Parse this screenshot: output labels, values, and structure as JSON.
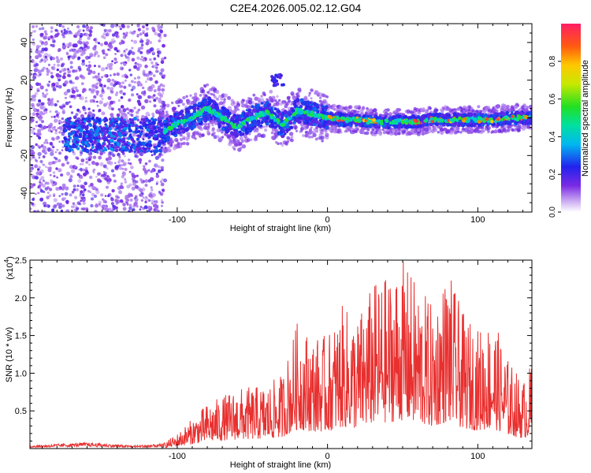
{
  "title": "C2E4.2026.005.02.12.G04",
  "chart_data": [
    {
      "type": "heatmap",
      "title": "C2E4.2026.005.02.12.G04",
      "xlabel": "Height of straight line (km)",
      "ylabel": "Frequency (Hz)",
      "xlim": [
        -198,
        136
      ],
      "ylim": [
        -50,
        50
      ],
      "xticks": [
        -100,
        0,
        100
      ],
      "yticks": [
        -40,
        -20,
        0,
        20,
        40
      ],
      "colorbar": {
        "label": "Normalized spectral amplitude",
        "range": [
          0.0,
          1.0
        ],
        "ticks": [
          0.0,
          0.2,
          0.4,
          0.6,
          0.8
        ]
      },
      "ridge_center_hz": {
        "x_km": [
          -110,
          -100,
          -90,
          -80,
          -70,
          -60,
          -50,
          -40,
          -30,
          -20,
          -10,
          0,
          10,
          20,
          30,
          40,
          50,
          60,
          70,
          80,
          90,
          100,
          110,
          120,
          130
        ],
        "freq": [
          -8,
          -3,
          0,
          5,
          0,
          -5,
          0,
          3,
          -4,
          4,
          2,
          0,
          -1,
          -1,
          -2,
          -2,
          -2,
          -2,
          -1,
          -1,
          -1,
          -1,
          -1,
          0,
          0
        ]
      },
      "scatter_region_x_km": [
        -198,
        -108
      ]
    },
    {
      "type": "line",
      "xlabel": "Height of straight line (km)",
      "ylabel": "SNR (10 * v/v)",
      "y_multiplier": "(x10^4)",
      "y_multiplier_base": "(x10",
      "y_multiplier_exp": "4",
      "xlim": [
        -198,
        136
      ],
      "ylim": [
        0,
        2.5
      ],
      "xticks": [
        -100,
        0,
        100
      ],
      "yticks": [
        0.5,
        1.0,
        1.5,
        2.0,
        2.5
      ],
      "ytick_labels": [
        "0.5",
        "1.0",
        "1.5",
        "2.0",
        "2.5"
      ],
      "series": [
        {
          "name": "SNR",
          "color": "#e8302f",
          "x": [
            -198,
            -160,
            -130,
            -110,
            -100,
            -80,
            -60,
            -40,
            -30,
            -20,
            -10,
            0,
            10,
            20,
            30,
            40,
            50,
            60,
            70,
            80,
            90,
            100,
            110,
            120,
            130,
            136
          ],
          "envelope_max": [
            0.04,
            0.08,
            0.04,
            0.06,
            0.2,
            0.6,
            0.8,
            0.85,
            1.0,
            1.7,
            1.5,
            1.5,
            1.9,
            1.75,
            2.2,
            2.3,
            2.5,
            2.2,
            1.9,
            2.4,
            1.8,
            1.6,
            1.75,
            1.2,
            0.9,
            1.15
          ]
        }
      ]
    }
  ]
}
